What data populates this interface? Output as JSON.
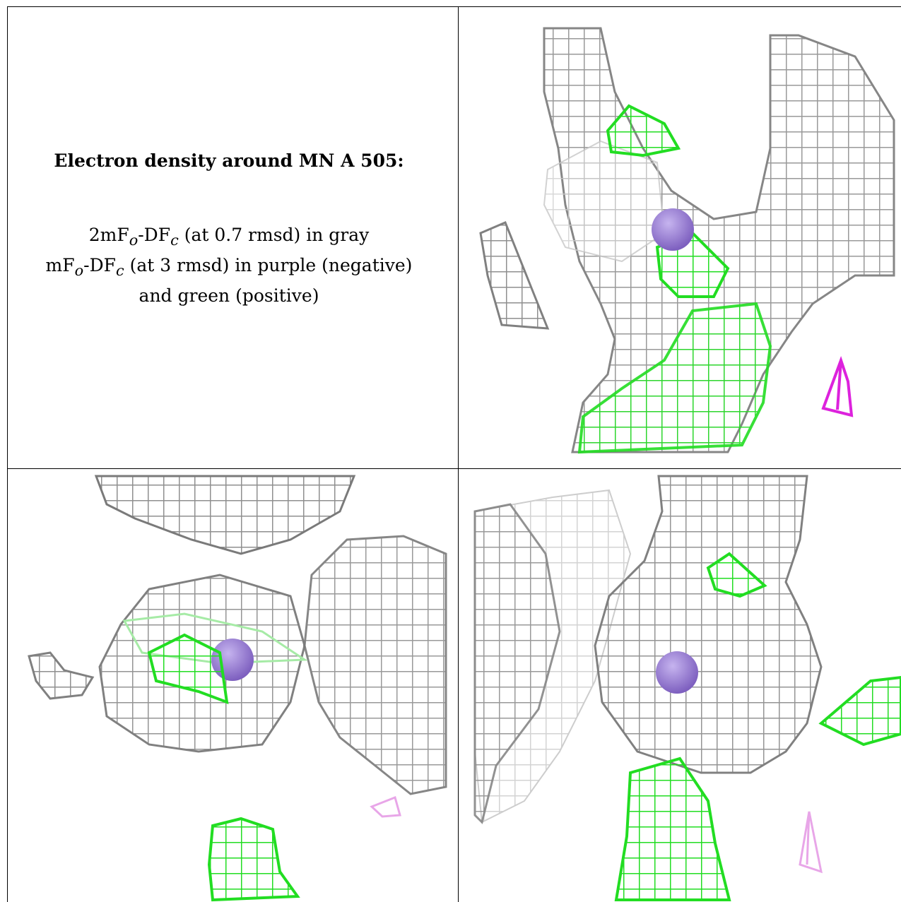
{
  "caption": {
    "title": "Electron density around MN A 505:",
    "lines": [
      "2mFo-DFc (at 0.7 rmsd) in gray",
      "mFo-DFc (at 3 rmsd) in purple (negative)",
      "and green (positive)"
    ]
  },
  "panels": [
    {
      "name": "view-top-right",
      "description_icon": "electron-density-mesh-icon"
    },
    {
      "name": "view-bottom-left",
      "description_icon": "electron-density-mesh-icon"
    },
    {
      "name": "view-bottom-right",
      "description_icon": "electron-density-mesh-icon"
    }
  ],
  "colors": {
    "density_gray": "#9a9a9a",
    "density_light": "#cfcfcf",
    "positive_green": "#22dd22",
    "negative_purple": "#dd22dd",
    "negative_light": "#e8a6e8",
    "mn_atom": "#9b7fd4"
  }
}
